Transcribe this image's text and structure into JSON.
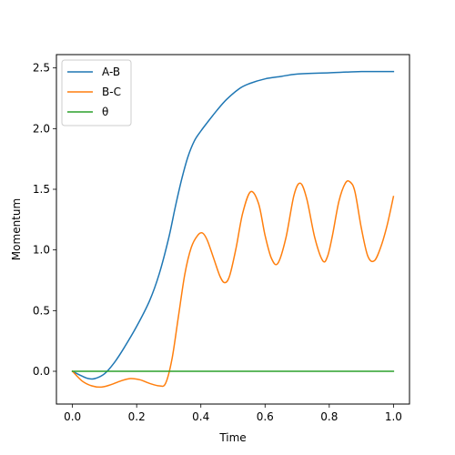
{
  "chart_data": {
    "type": "line",
    "title": "",
    "xlabel": "Time",
    "ylabel": "Momentum",
    "xlim": [
      -0.05,
      1.05
    ],
    "ylim": [
      -0.27,
      2.61
    ],
    "xticks": [
      0.0,
      0.2,
      0.4,
      0.6,
      0.8,
      1.0
    ],
    "xtick_labels": [
      "0.0",
      "0.2",
      "0.4",
      "0.6",
      "0.8",
      "1.0"
    ],
    "yticks": [
      0.0,
      0.5,
      1.0,
      1.5,
      2.0,
      2.5
    ],
    "ytick_labels": [
      "0.0",
      "0.5",
      "1.0",
      "1.5",
      "2.0",
      "2.5"
    ],
    "grid": false,
    "legend": "top-left",
    "series": [
      {
        "name": "A-B",
        "color": "#1f77b4",
        "x": [
          0.0,
          0.03,
          0.05,
          0.07,
          0.1,
          0.13,
          0.16,
          0.2,
          0.24,
          0.27,
          0.3,
          0.32,
          0.34,
          0.36,
          0.38,
          0.4,
          0.42,
          0.45,
          0.48,
          0.52,
          0.55,
          0.6,
          0.65,
          0.7,
          0.8,
          0.9,
          1.0
        ],
        "y": [
          0.0,
          -0.04,
          -0.06,
          -0.06,
          -0.02,
          0.07,
          0.19,
          0.37,
          0.58,
          0.8,
          1.1,
          1.35,
          1.58,
          1.77,
          1.9,
          1.98,
          2.05,
          2.15,
          2.24,
          2.33,
          2.37,
          2.41,
          2.43,
          2.45,
          2.46,
          2.47,
          2.47
        ]
      },
      {
        "name": "B-C",
        "color": "#ff7f0e",
        "x": [
          0.0,
          0.03,
          0.06,
          0.09,
          0.12,
          0.15,
          0.18,
          0.21,
          0.24,
          0.27,
          0.29,
          0.31,
          0.33,
          0.35,
          0.37,
          0.39,
          0.405,
          0.42,
          0.44,
          0.46,
          0.475,
          0.49,
          0.51,
          0.53,
          0.555,
          0.58,
          0.6,
          0.62,
          0.64,
          0.665,
          0.69,
          0.71,
          0.73,
          0.755,
          0.78,
          0.795,
          0.81,
          0.83,
          0.85,
          0.865,
          0.88,
          0.9,
          0.92,
          0.94,
          0.96,
          0.98,
          1.0
        ],
        "y": [
          0.0,
          -0.08,
          -0.12,
          -0.13,
          -0.11,
          -0.08,
          -0.06,
          -0.07,
          -0.1,
          -0.12,
          -0.1,
          0.1,
          0.45,
          0.8,
          1.02,
          1.12,
          1.14,
          1.08,
          0.93,
          0.78,
          0.73,
          0.79,
          1.02,
          1.3,
          1.48,
          1.38,
          1.12,
          0.93,
          0.89,
          1.1,
          1.45,
          1.55,
          1.42,
          1.1,
          0.91,
          0.95,
          1.12,
          1.4,
          1.55,
          1.56,
          1.48,
          1.18,
          0.95,
          0.91,
          1.02,
          1.2,
          1.44
        ]
      },
      {
        "name": "θ",
        "color": "#2ca02c",
        "x": [
          0.0,
          1.0
        ],
        "y": [
          0.0,
          0.0
        ]
      }
    ]
  }
}
